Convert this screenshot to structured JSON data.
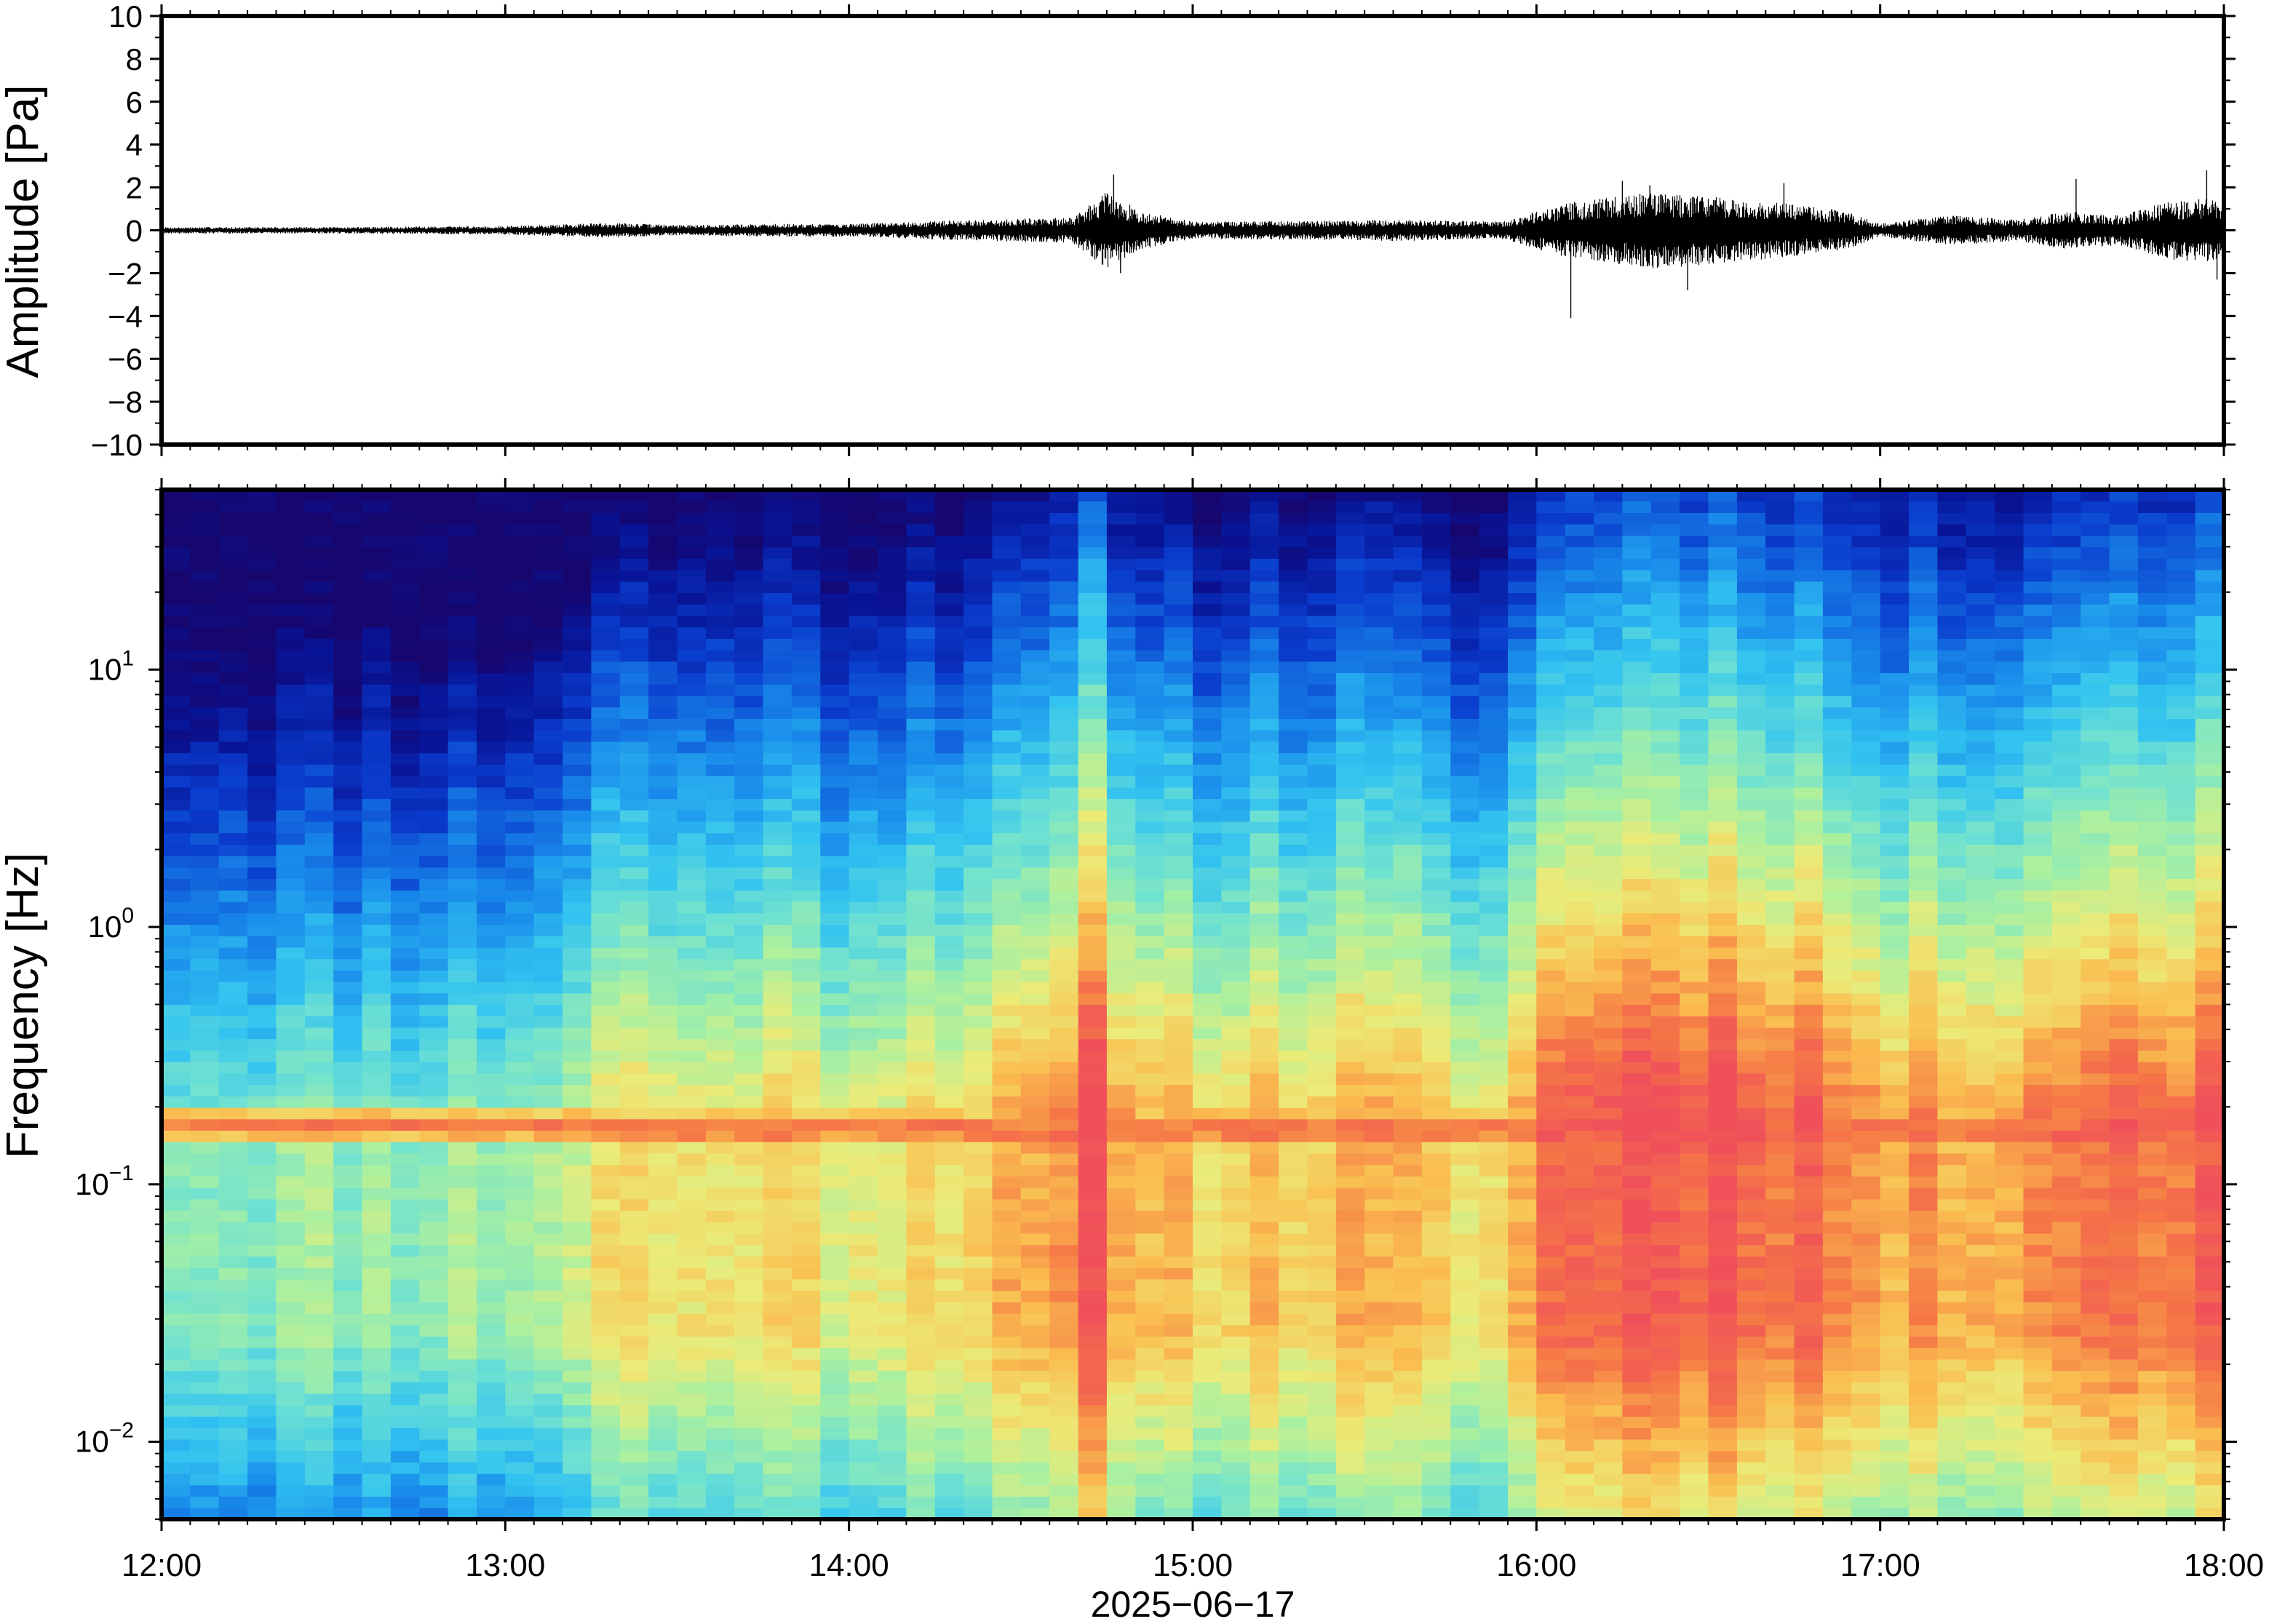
{
  "chart_data": [
    {
      "type": "line",
      "ylabel": "Amplitude [Pa]",
      "ylim": [
        -10,
        10
      ],
      "yticks": [
        10,
        8,
        6,
        4,
        2,
        0,
        -2,
        -4,
        -6,
        -8,
        -10
      ],
      "ytick_labels": [
        "10",
        "8",
        "6",
        "4",
        "2",
        "0",
        "−2",
        "−4",
        "−6",
        "−8",
        "−10"
      ],
      "x_range_hours": [
        12,
        18
      ],
      "series": [
        {
          "envelope_x": [
            12.0,
            12.5,
            13.0,
            13.3,
            13.5,
            13.8,
            14.0,
            14.3,
            14.5,
            14.65,
            14.75,
            14.85,
            15.0,
            15.4,
            15.6,
            15.9,
            16.0,
            16.1,
            16.2,
            16.35,
            16.5,
            16.7,
            16.9,
            17.0,
            17.2,
            17.4,
            17.55,
            17.7,
            17.85,
            18.0
          ],
          "envelope_amp": [
            0.15,
            0.15,
            0.2,
            0.35,
            0.25,
            0.3,
            0.3,
            0.45,
            0.55,
            0.6,
            1.8,
            0.9,
            0.4,
            0.45,
            0.5,
            0.4,
            0.9,
            1.3,
            1.5,
            1.8,
            1.6,
            1.3,
            0.9,
            0.3,
            0.7,
            0.5,
            0.9,
            0.7,
            1.4,
            1.5
          ],
          "spikes": [
            {
              "x": 14.77,
              "y": 2.6
            },
            {
              "x": 14.79,
              "y": -2.0
            },
            {
              "x": 16.1,
              "y": -4.1
            },
            {
              "x": 16.25,
              "y": 2.3
            },
            {
              "x": 16.33,
              "y": 2.1
            },
            {
              "x": 16.44,
              "y": -2.8
            },
            {
              "x": 16.72,
              "y": 2.2
            },
            {
              "x": 17.57,
              "y": 2.4
            },
            {
              "x": 17.95,
              "y": 2.8
            },
            {
              "x": 17.98,
              "y": -2.3
            }
          ]
        }
      ]
    },
    {
      "type": "heatmap",
      "ylabel": "Frequency [Hz]",
      "yscale": "log",
      "ylim": [
        0.005,
        50
      ],
      "yticks": [
        0.01,
        0.1,
        1,
        10
      ],
      "ytick_labels": [
        {
          "base": "10",
          "exp": "−2"
        },
        {
          "base": "10",
          "exp": "−1"
        },
        {
          "base": "10",
          "exp": "0"
        },
        {
          "base": "10",
          "exp": "1"
        }
      ],
      "xlabel": "2025−06−17",
      "xlim_hours": [
        12,
        18
      ],
      "xtick_labels": [
        "12:00",
        "13:00",
        "14:00",
        "15:00",
        "16:00",
        "17:00",
        "18:00"
      ],
      "colormap": "jet",
      "activity_time": [
        12.0,
        12.5,
        13.0,
        13.2,
        13.35,
        13.5,
        13.7,
        14.0,
        14.2,
        14.4,
        14.6,
        14.72,
        14.82,
        15.0,
        15.3,
        15.5,
        15.7,
        15.9,
        16.05,
        16.3,
        16.5,
        16.8,
        17.0,
        17.2,
        17.45,
        17.6,
        17.8,
        18.0
      ],
      "activity_level": [
        0.05,
        0.05,
        0.08,
        0.2,
        0.5,
        0.3,
        0.45,
        0.35,
        0.45,
        0.5,
        0.55,
        0.95,
        0.6,
        0.5,
        0.5,
        0.55,
        0.45,
        0.4,
        0.85,
        0.95,
        0.95,
        0.85,
        0.6,
        0.65,
        0.7,
        0.85,
        0.75,
        0.95
      ],
      "microseism_band_hz": 0.17
    }
  ]
}
